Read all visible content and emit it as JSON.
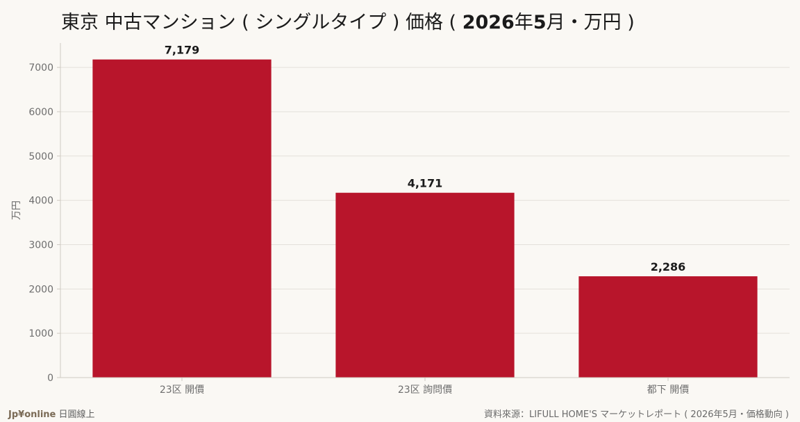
{
  "title": {
    "part1": "東京 中古マンション ( シングルタイプ ) 価格 ( ",
    "part2": "2026",
    "part3": "年",
    "part4": "5",
    "part5": "月・万円 )"
  },
  "footer": {
    "brand": "Jp¥online",
    "brand_suffix": " 日圓線上",
    "source": "資料來源：LIFULL HOME'S マーケットレポート ( 2026年5月・価格動向 )"
  },
  "colors": {
    "bar": "#b8152b",
    "grid": "#e3e0da",
    "axis": "#cfcac2",
    "tick_text": "#6e6e6e",
    "label_text": "#1a1a1a"
  },
  "chart_data": {
    "type": "bar",
    "title": "東京 中古マンション ( シングルタイプ ) 価格 ( 2026年5月・万円 )",
    "categories": [
      "23区 開價",
      "23区 詢問價",
      "都下 開價"
    ],
    "values": [
      7179,
      4171,
      2286
    ],
    "value_labels": [
      "7,179",
      "4,171",
      "2,286"
    ],
    "xlabel": "",
    "ylabel": "万円",
    "ylim": [
      0,
      7550
    ],
    "yticks": [
      0,
      1000,
      2000,
      3000,
      4000,
      5000,
      6000,
      7000
    ],
    "grid": true,
    "legend": "none"
  }
}
